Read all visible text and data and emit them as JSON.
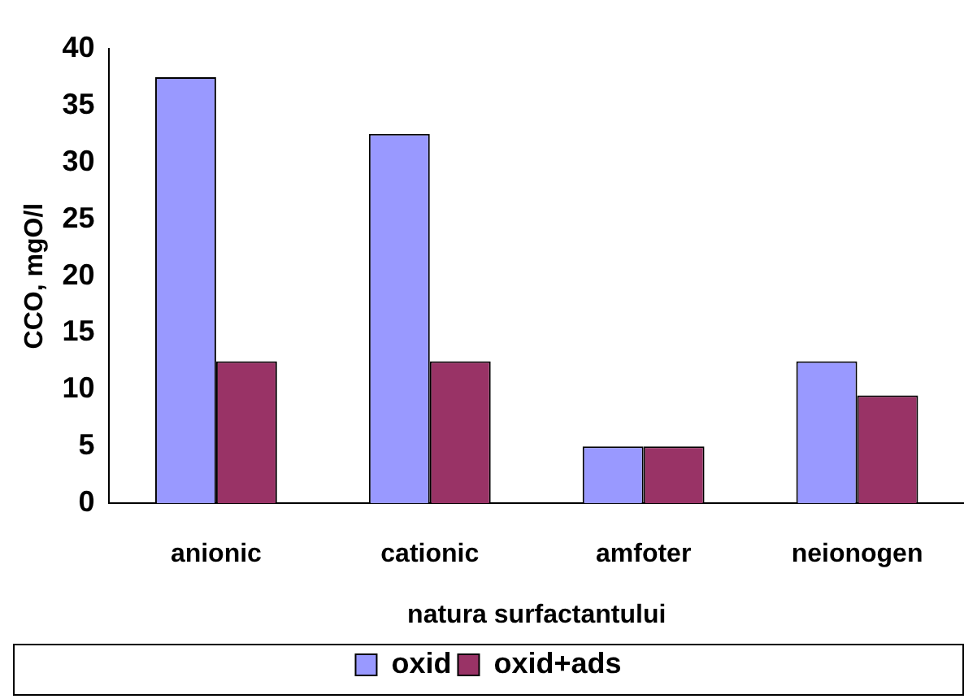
{
  "chart_data": {
    "type": "bar",
    "xlabel": "natura surfactantului",
    "ylabel": "CCO, mgO/l",
    "categories": [
      "anionic",
      "cationic",
      "amfoter",
      "neionogen"
    ],
    "series": [
      {
        "name": "oxid",
        "color": "#9999ff",
        "values": [
          37.5,
          32.5,
          5,
          12.5
        ]
      },
      {
        "name": "oxid+ads",
        "color": "#993366",
        "values": [
          12.5,
          12.5,
          5,
          9.5
        ]
      }
    ],
    "ylim": [
      0,
      40
    ],
    "yticks": [
      0,
      5,
      10,
      15,
      20,
      25,
      30,
      35,
      40
    ],
    "grid": false,
    "legend": "bottom"
  }
}
